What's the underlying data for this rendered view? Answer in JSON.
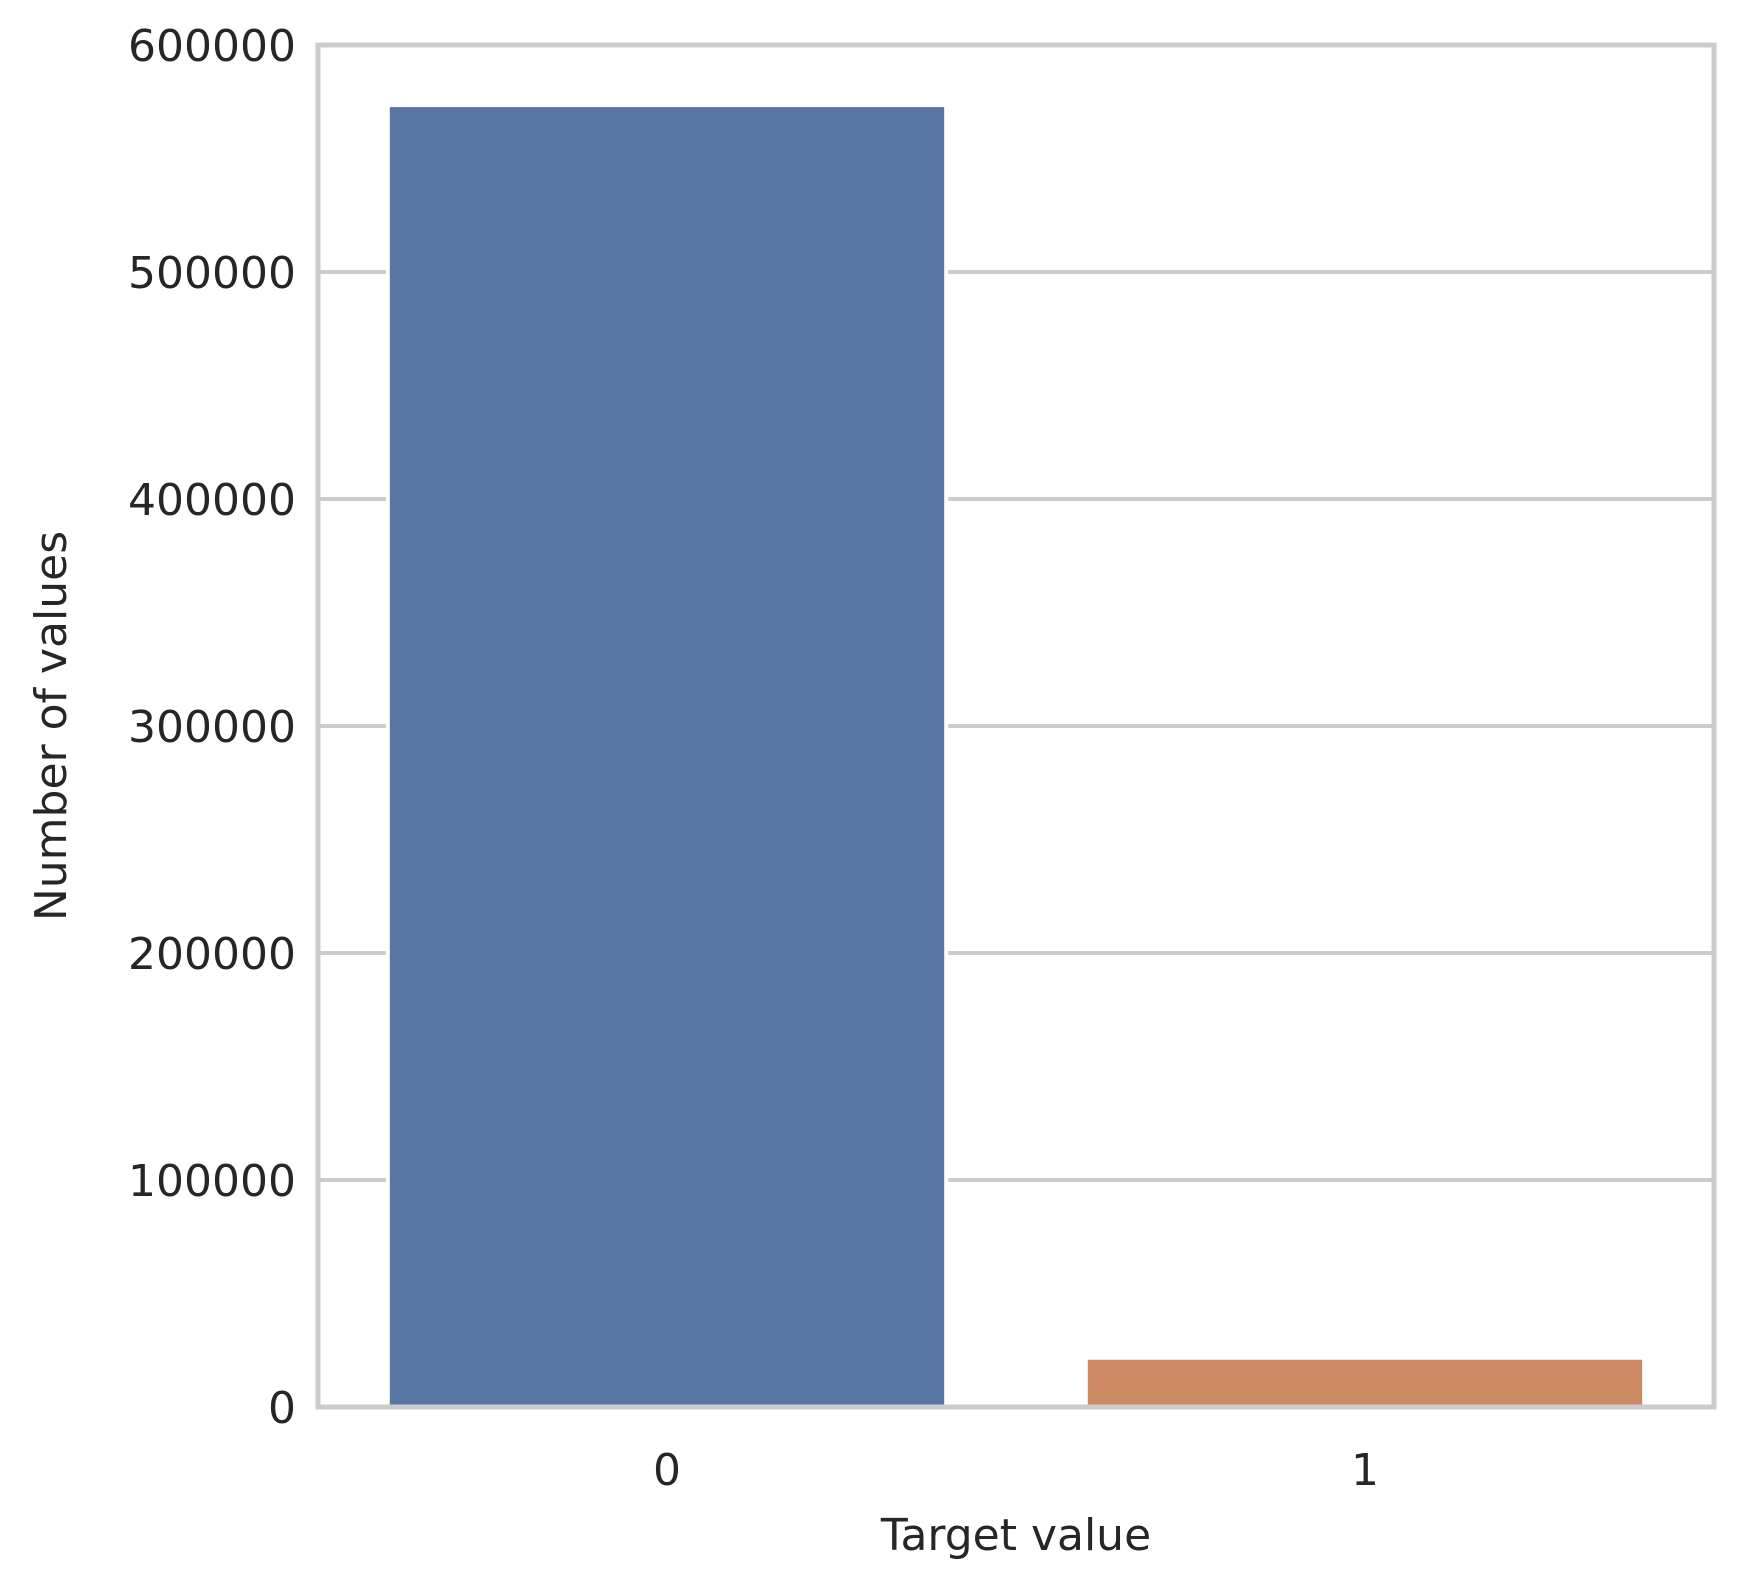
{
  "chart_data": {
    "type": "bar",
    "title": "",
    "xlabel": "Target value",
    "ylabel": "Number of values",
    "categories": [
      "0",
      "1"
    ],
    "values": [
      573518,
      21694
    ],
    "bar_colors": [
      "#5975a4",
      "#cc8963"
    ],
    "ylim": [
      0,
      600000
    ],
    "yticks": [
      0,
      100000,
      200000,
      300000,
      400000,
      500000,
      600000
    ],
    "ytick_labels": [
      "0",
      "100000",
      "200000",
      "300000",
      "400000",
      "500000",
      "600000"
    ],
    "grid": "horizontal",
    "grid_color": "#cccccc",
    "background": "#ffffff",
    "legend": "none"
  }
}
